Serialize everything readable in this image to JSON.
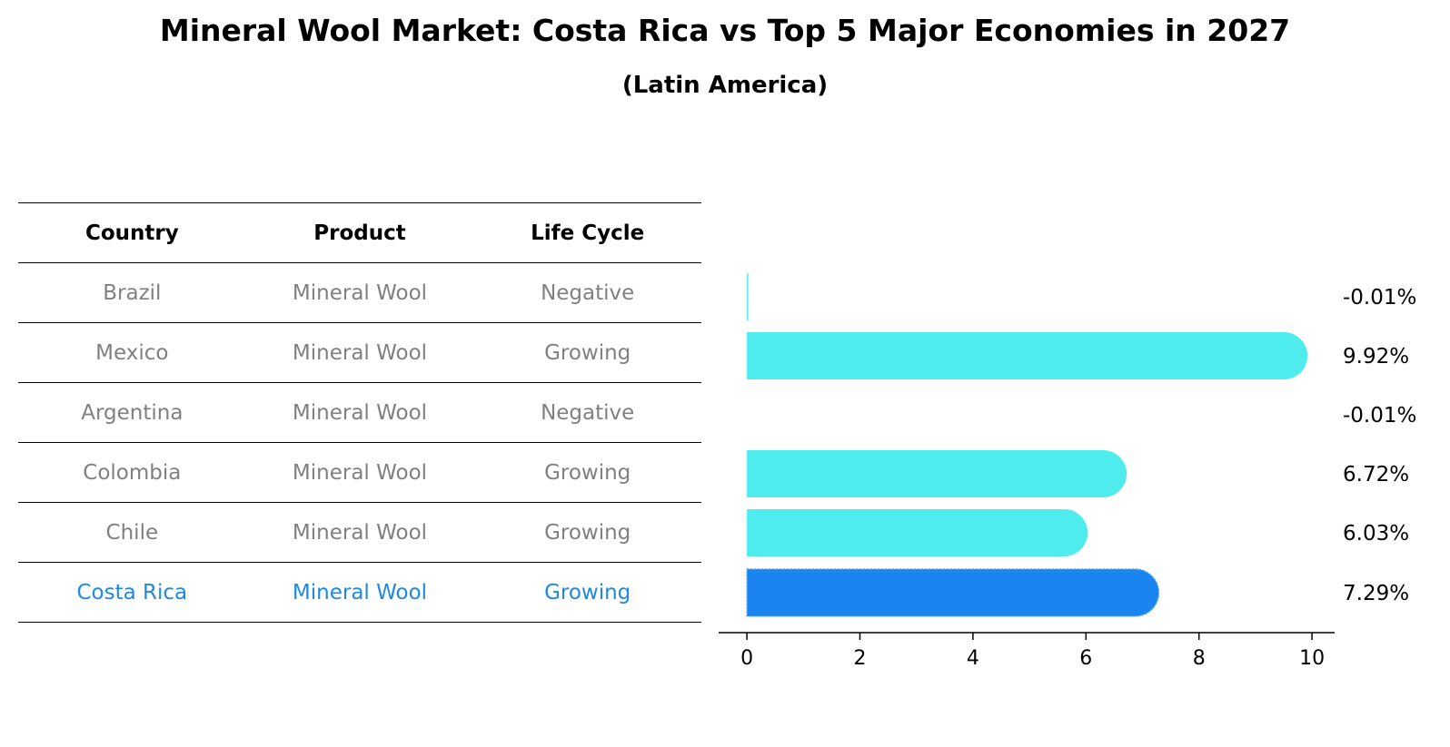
{
  "chart_data": {
    "type": "bar",
    "orientation": "horizontal",
    "title": "Mineral Wool Market: Costa Rica vs Top 5 Major Economies in 2027",
    "subtitle": "(Latin America)",
    "table": {
      "headers": [
        "Country",
        "Product",
        "Life Cycle"
      ],
      "rows": [
        {
          "country": "Brazil",
          "product": "Mineral Wool",
          "life_cycle": "Negative"
        },
        {
          "country": "Mexico",
          "product": "Mineral Wool",
          "life_cycle": "Growing"
        },
        {
          "country": "Argentina",
          "product": "Mineral Wool",
          "life_cycle": "Negative"
        },
        {
          "country": "Colombia",
          "product": "Mineral Wool",
          "life_cycle": "Growing"
        },
        {
          "country": "Chile",
          "product": "Mineral Wool",
          "life_cycle": "Growing"
        },
        {
          "country": "Costa Rica",
          "product": "Mineral Wool",
          "life_cycle": "Growing"
        }
      ]
    },
    "categories": [
      "Brazil",
      "Mexico",
      "Argentina",
      "Colombia",
      "Chile",
      "Costa Rica"
    ],
    "values": [
      -0.01,
      9.92,
      -0.01,
      6.72,
      6.03,
      7.29
    ],
    "value_labels": [
      "-0.01%",
      "9.92%",
      "-0.01%",
      "6.72%",
      "6.03%",
      "7.29%"
    ],
    "highlight_category": "Costa Rica",
    "colors": {
      "default": "#4eecec",
      "highlight": "#1a85f0",
      "highlight_text": "#1e88e5",
      "muted_text": "#808080"
    },
    "xlim": [
      -0.5,
      10.4
    ],
    "xticks": [
      0,
      2,
      4,
      6,
      8,
      10
    ],
    "xlabel": "",
    "ylabel": ""
  }
}
